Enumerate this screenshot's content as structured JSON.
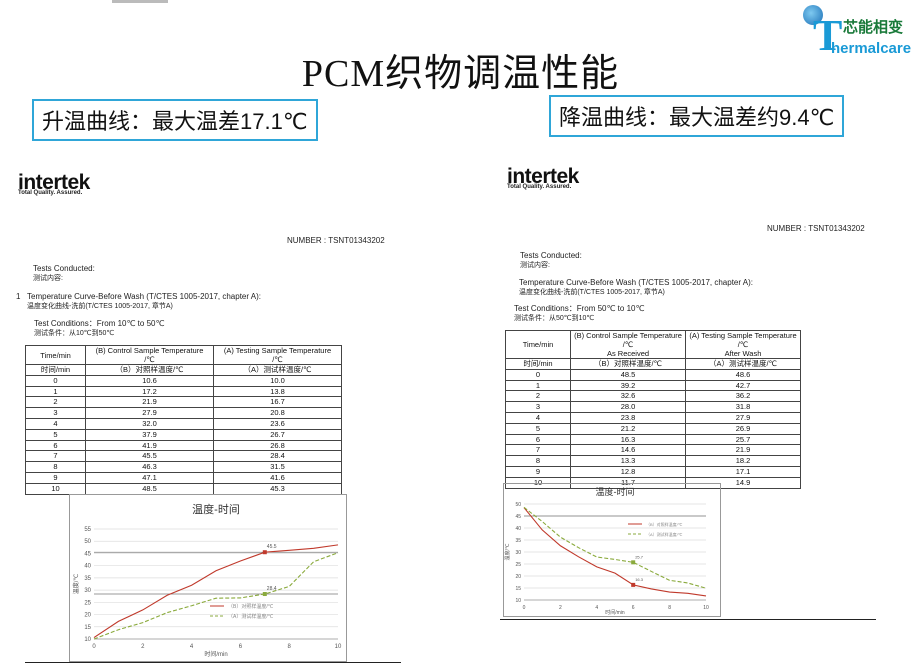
{
  "slide": {
    "title": "PCM织物调温性能",
    "heating_callout": "升温曲线：最大温差17.1℃",
    "cooling_callout": "降温曲线：最大温差约9.4℃"
  },
  "logo": {
    "cn": "芯能相变",
    "en": "hermalcare",
    "initial": "T"
  },
  "left_report": {
    "brand": "intertek",
    "tagline": "Total Quality. Assured.",
    "number": "NUMBER : TSNT01343202",
    "tests_conducted": "Tests Conducted:",
    "tests_conducted_cn": "测试内容:",
    "item_no": "1",
    "item_title": "Temperature Curve-Before Wash (T/CTES 1005-2017, chapter A):",
    "item_title_cn": "温度变化曲线-洗前(T/CTES 1005-2017, 章节A)",
    "conditions": "Test Conditions：From 10℃ to 50℃",
    "conditions_cn": "测试条件：从10℃到50℃",
    "table": {
      "header_time": "Time/min",
      "header_b": "(B) Control Sample Temperature",
      "header_b2": "/℃",
      "header_a": "(A) Testing Sample Temperature",
      "header_a2": "/℃",
      "sub_time": "时间/min",
      "sub_b": "（B）对照样温度/℃",
      "sub_a": "（A）测试样温度/℃",
      "rows": [
        [
          "0",
          "10.6",
          "10.0"
        ],
        [
          "1",
          "17.2",
          "13.8"
        ],
        [
          "2",
          "21.9",
          "16.7"
        ],
        [
          "3",
          "27.9",
          "20.8"
        ],
        [
          "4",
          "32.0",
          "23.6"
        ],
        [
          "5",
          "37.9",
          "26.7"
        ],
        [
          "6",
          "41.9",
          "26.8"
        ],
        [
          "7",
          "45.5",
          "28.4"
        ],
        [
          "8",
          "46.3",
          "31.5"
        ],
        [
          "9",
          "47.1",
          "41.6"
        ],
        [
          "10",
          "48.5",
          "45.3"
        ]
      ]
    },
    "chart_data": {
      "type": "line",
      "title": "温度-时间",
      "xlabel": "时间/min",
      "ylabel": "温度/℃",
      "x": [
        0,
        1,
        2,
        3,
        4,
        5,
        6,
        7,
        8,
        9,
        10
      ],
      "xticks": [
        "0",
        "2",
        "4",
        "6",
        "8",
        "10"
      ],
      "yticks": [
        "10",
        "15",
        "20",
        "25",
        "30",
        "35",
        "40",
        "45",
        "50",
        "55"
      ],
      "xlim": [
        0,
        10
      ],
      "ylim": [
        10,
        55
      ],
      "series": [
        {
          "name": "（B）对照样温度/℃",
          "color": "#c0392b",
          "dashed": false,
          "values": [
            10.6,
            17.2,
            21.9,
            27.9,
            32.0,
            37.9,
            41.9,
            45.5,
            46.3,
            47.1,
            48.5
          ]
        },
        {
          "name": "（A）测试样温度/℃",
          "color": "#8aaa3c",
          "dashed": true,
          "values": [
            10.0,
            13.8,
            16.7,
            20.8,
            23.6,
            26.7,
            26.8,
            28.4,
            31.5,
            41.6,
            45.3
          ]
        }
      ],
      "annotations": [
        {
          "x": 7,
          "y": 45.5,
          "text": "45.5",
          "series": 0
        },
        {
          "x": 7,
          "y": 28.4,
          "text": "28.4",
          "series": 1
        }
      ],
      "reference_lines_y": [
        45.5,
        28.4
      ],
      "legend": "bottom-right",
      "grid": true
    }
  },
  "right_report": {
    "brand": "intertek",
    "tagline": "Total Quality. Assured.",
    "number": "NUMBER : TSNT01343202",
    "tests_conducted": "Tests Conducted:",
    "tests_conducted_cn": "测试内容:",
    "item_title": "Temperature Curve-Before Wash (T/CTES 1005-2017, chapter A):",
    "item_title_cn": "温度变化曲线-洗前(T/CTES 1005-2017, 章节A)",
    "conditions": "Test Conditions：From 50℃ to 10℃",
    "conditions_cn": "测试条件：从50℃到10℃",
    "table": {
      "header_time": "Time/min",
      "header_b": "(B) Control Sample Temperature",
      "header_b2": "/℃",
      "header_b3": "As Received",
      "header_a": "(A) Testing Sample Temperature",
      "header_a2": "/℃",
      "header_a3": "After Wash",
      "sub_time": "时间/min",
      "sub_b": "（B）对照样温度/℃",
      "sub_a": "（A）测试样温度/℃",
      "rows": [
        [
          "0",
          "48.5",
          "48.6"
        ],
        [
          "1",
          "39.2",
          "42.7"
        ],
        [
          "2",
          "32.6",
          "36.2"
        ],
        [
          "3",
          "28.0",
          "31.8"
        ],
        [
          "4",
          "23.8",
          "27.9"
        ],
        [
          "5",
          "21.2",
          "26.9"
        ],
        [
          "6",
          "16.3",
          "25.7"
        ],
        [
          "7",
          "14.6",
          "21.9"
        ],
        [
          "8",
          "13.3",
          "18.2"
        ],
        [
          "9",
          "12.8",
          "17.1"
        ],
        [
          "10",
          "11.7",
          "14.9"
        ]
      ]
    },
    "chart_data": {
      "type": "line",
      "title": "温度-时间",
      "xlabel": "时间/min",
      "ylabel": "温度/℃",
      "x": [
        0,
        1,
        2,
        3,
        4,
        5,
        6,
        7,
        8,
        9,
        10
      ],
      "xticks": [
        "0",
        "2",
        "4",
        "6",
        "8",
        "10"
      ],
      "yticks": [
        "10",
        "15",
        "20",
        "25",
        "30",
        "35",
        "40",
        "45",
        "50"
      ],
      "xlim": [
        0,
        10
      ],
      "ylim": [
        10,
        50
      ],
      "series": [
        {
          "name": "（B）对照样温度/℃",
          "color": "#c0392b",
          "dashed": false,
          "values": [
            48.5,
            39.2,
            32.6,
            28.0,
            23.8,
            21.2,
            16.3,
            14.6,
            13.3,
            12.8,
            11.7
          ]
        },
        {
          "name": "（A）测试样温度/℃",
          "color": "#8aaa3c",
          "dashed": true,
          "values": [
            48.6,
            42.7,
            36.2,
            31.8,
            27.9,
            26.9,
            25.7,
            21.9,
            18.2,
            17.1,
            14.9
          ]
        }
      ],
      "annotations": [
        {
          "x": 6,
          "y": 16.3,
          "text": "16.3",
          "series": 0
        },
        {
          "x": 6,
          "y": 25.7,
          "text": "25.7",
          "series": 1
        }
      ],
      "reference_lines_y": [
        45
      ],
      "legend": "top-right",
      "grid": true
    }
  }
}
